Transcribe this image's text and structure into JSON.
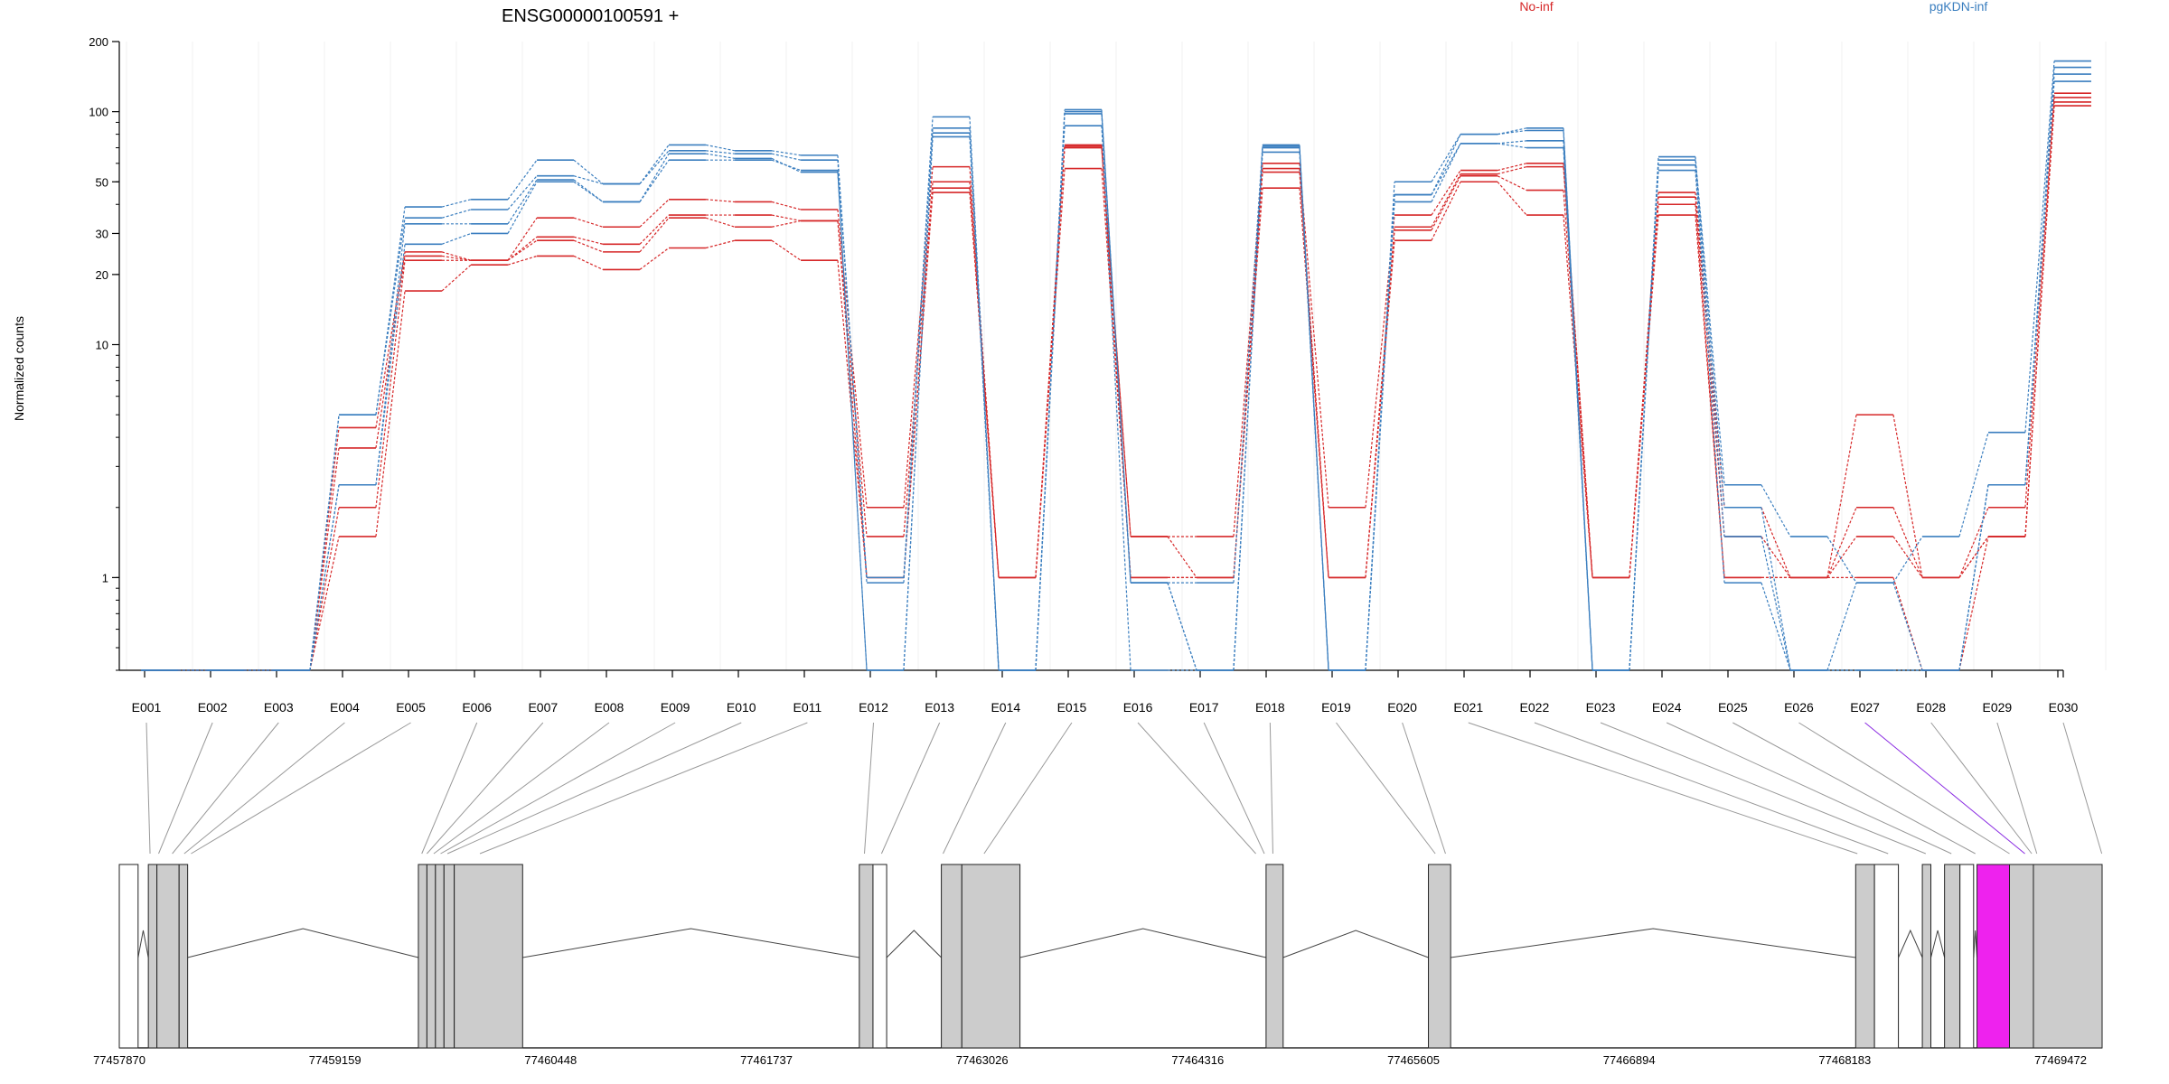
{
  "chart_data": {
    "type": "line",
    "title": "ENSG00000100591 +",
    "ylabel": "Normalized counts",
    "xlabel": "",
    "y_scale": "log",
    "ylim": [
      0.4,
      200
    ],
    "y_ticks": [
      1,
      10,
      20,
      30,
      50,
      100,
      200
    ],
    "legend": [
      {
        "name": "No-inf",
        "color": "#d62728"
      },
      {
        "name": "pgKDN-inf",
        "color": "#3a7ebf"
      }
    ],
    "exons": [
      "E001",
      "E002",
      "E003",
      "E004",
      "E005",
      "E006",
      "E007",
      "E008",
      "E009",
      "E010",
      "E011",
      "E012",
      "E013",
      "E014",
      "E015",
      "E016",
      "E017",
      "E018",
      "E019",
      "E020",
      "E021",
      "E022",
      "E023",
      "E024",
      "E025",
      "E026",
      "E027",
      "E028",
      "E029",
      "E030"
    ],
    "series": [
      {
        "group": "No-inf",
        "values": [
          0.4,
          0.4,
          0.4,
          4.4,
          25,
          23,
          35,
          32,
          42,
          41,
          38,
          2,
          58,
          1,
          72,
          1.5,
          1.5,
          60,
          2,
          36,
          56,
          60,
          1,
          45,
          2,
          1,
          5,
          1,
          2,
          120
        ]
      },
      {
        "group": "No-inf",
        "values": [
          0.4,
          0.4,
          0.4,
          3.6,
          24,
          23,
          29,
          27,
          36,
          36,
          34,
          1.5,
          50,
          1,
          71,
          1,
          1,
          57,
          1,
          32,
          54,
          58,
          1,
          43,
          1.5,
          1,
          2,
          1,
          1.5,
          115
        ]
      },
      {
        "group": "No-inf",
        "values": [
          0.4,
          0.4,
          0.4,
          2,
          23,
          23,
          28,
          25,
          35,
          32,
          34,
          1,
          47,
          1,
          70,
          1.5,
          1,
          55,
          1,
          31,
          53,
          46,
          1,
          40,
          1,
          1,
          1.5,
          1,
          1.5,
          110
        ]
      },
      {
        "group": "No-inf",
        "values": [
          0.4,
          0.4,
          0.4,
          1.5,
          17,
          22,
          24,
          21,
          26,
          28,
          23,
          1,
          45,
          1,
          57,
          1,
          1,
          47,
          1,
          28,
          50,
          36,
          1,
          36,
          1,
          1,
          1,
          0.4,
          1.5,
          106
        ]
      },
      {
        "group": "pgKDN-inf",
        "values": [
          0.4,
          0.4,
          0.4,
          5,
          39,
          42,
          62,
          49,
          72,
          68,
          65,
          1,
          95,
          0.4,
          102,
          0.95,
          0.95,
          72,
          0.4,
          50,
          80,
          85,
          0.4,
          64,
          2.5,
          1.5,
          0.95,
          1.5,
          4.2,
          165
        ]
      },
      {
        "group": "pgKDN-inf",
        "values": [
          0.4,
          0.4,
          0.4,
          5,
          35,
          38,
          53,
          49,
          68,
          66,
          62,
          0.95,
          85,
          0.4,
          100,
          0.95,
          0.4,
          71,
          0.4,
          44,
          80,
          83,
          0.4,
          62,
          2,
          0.4,
          0.95,
          0.4,
          2.5,
          155
        ]
      },
      {
        "group": "pgKDN-inf",
        "values": [
          0.4,
          0.4,
          0.4,
          2.5,
          33,
          33,
          51,
          41,
          66,
          63,
          55,
          0.4,
          81,
          0.4,
          98,
          0.95,
          0.4,
          70,
          0.4,
          44,
          73,
          75,
          0.4,
          59,
          1.5,
          0.4,
          0.4,
          0.4,
          2.5,
          145
        ]
      },
      {
        "group": "pgKDN-inf",
        "values": [
          0.4,
          0.4,
          0.4,
          2.5,
          27,
          30,
          50,
          41,
          62,
          62,
          56,
          0.4,
          78,
          0.4,
          87,
          0.4,
          0.4,
          67,
          0.4,
          41,
          73,
          70,
          0.4,
          56,
          0.95,
          0.4,
          0.4,
          0.4,
          2.5,
          135
        ]
      }
    ],
    "genomic_coordinates": [
      "77457870",
      "77459159",
      "77460448",
      "77461737",
      "77463026",
      "77464316",
      "77465605",
      "77466894",
      "77468183",
      "77469472"
    ],
    "gene_model": {
      "start": 77457870,
      "end": 77469472,
      "exons": [
        {
          "start": 77457870,
          "end": 77457980,
          "fill": "#ffffff"
        },
        {
          "start": 77458040,
          "end": 77458090,
          "fill": "#cccccc"
        },
        {
          "start": 77458090,
          "end": 77458220,
          "fill": "#cccccc"
        },
        {
          "start": 77458220,
          "end": 77458270,
          "fill": "#cccccc"
        },
        {
          "start": 77459620,
          "end": 77459670,
          "fill": "#cccccc"
        },
        {
          "start": 77459670,
          "end": 77459720,
          "fill": "#cccccc"
        },
        {
          "start": 77459720,
          "end": 77459770,
          "fill": "#cccccc"
        },
        {
          "start": 77459770,
          "end": 77459830,
          "fill": "#cccccc"
        },
        {
          "start": 77459830,
          "end": 77460230,
          "fill": "#cccccc"
        },
        {
          "start": 77462200,
          "end": 77462280,
          "fill": "#cccccc"
        },
        {
          "start": 77462280,
          "end": 77462360,
          "fill": "#ffffff"
        },
        {
          "start": 77462680,
          "end": 77462800,
          "fill": "#cccccc"
        },
        {
          "start": 77462800,
          "end": 77463140,
          "fill": "#cccccc"
        },
        {
          "start": 77464580,
          "end": 77464680,
          "fill": "#cccccc"
        },
        {
          "start": 77465530,
          "end": 77465660,
          "fill": "#cccccc"
        },
        {
          "start": 77468030,
          "end": 77468140,
          "fill": "#cccccc"
        },
        {
          "start": 77468140,
          "end": 77468280,
          "fill": "#ffffff"
        },
        {
          "start": 77468420,
          "end": 77468470,
          "fill": "#cccccc"
        },
        {
          "start": 77468550,
          "end": 77468640,
          "fill": "#cccccc"
        },
        {
          "start": 77468640,
          "end": 77468720,
          "fill": "#ffffff"
        },
        {
          "start": 77468740,
          "end": 77468930,
          "fill": "#ee22ee"
        },
        {
          "start": 77468930,
          "end": 77469070,
          "fill": "#cccccc"
        },
        {
          "start": 77469070,
          "end": 77469472,
          "fill": "#cccccc"
        }
      ],
      "connector_targets": [
        77458050,
        77458100,
        77458180,
        77458250,
        77458290,
        77459640,
        77459670,
        77459710,
        77459750,
        77459790,
        77459980,
        77462230,
        77462330,
        77462690,
        77462930,
        77464520,
        77464570,
        77464620,
        77465570,
        77465630,
        77468040,
        77468220,
        77468440,
        77468590,
        77468730,
        77468930,
        77469020,
        77469060,
        77469090,
        77469470
      ],
      "highlight_connector": 26
    }
  }
}
